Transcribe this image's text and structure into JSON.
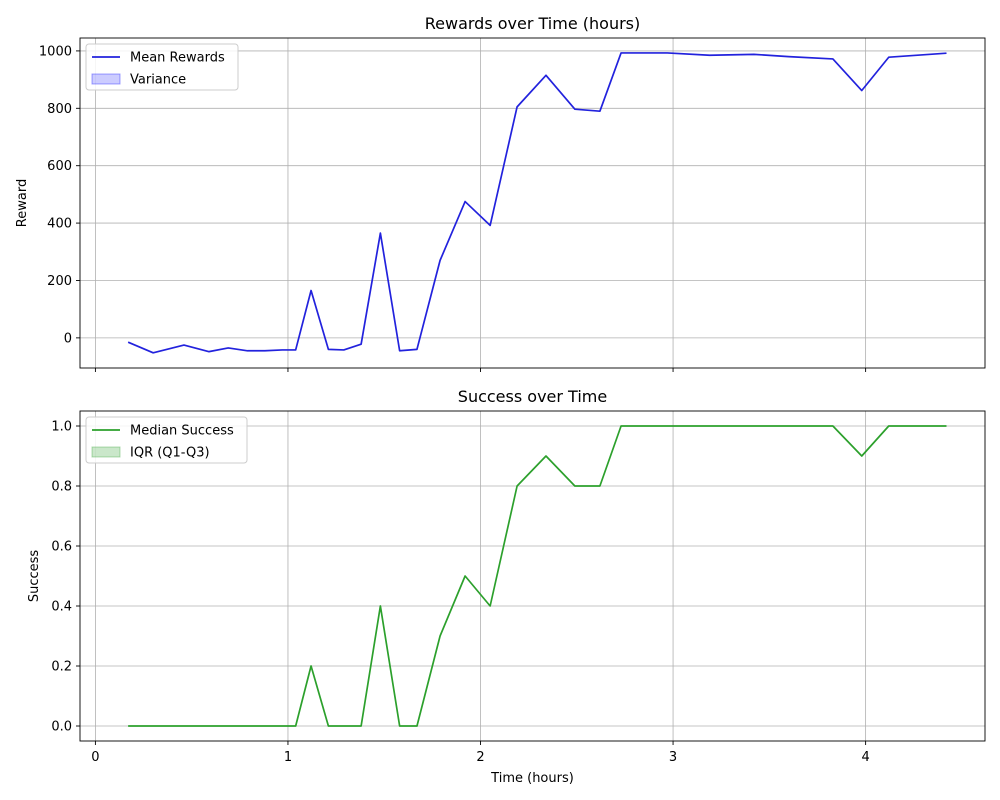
{
  "chart_data": [
    {
      "type": "line",
      "title": "Rewards over Time (hours)",
      "xlabel": "",
      "ylabel": "Reward",
      "xlim": [
        -0.08,
        4.62
      ],
      "ylim": [
        -105,
        1045
      ],
      "xticks": [
        0,
        1,
        2,
        3,
        4
      ],
      "xtick_labels_visible": false,
      "yticks": [
        0,
        200,
        400,
        600,
        800,
        1000
      ],
      "grid": true,
      "legend_position": "top-left",
      "series": [
        {
          "name": "Mean Rewards",
          "kind": "line",
          "color": "#2222dd",
          "x": [
            0.17,
            0.3,
            0.46,
            0.59,
            0.69,
            0.79,
            0.88,
            0.97,
            1.04,
            1.12,
            1.21,
            1.29,
            1.38,
            1.48,
            1.58,
            1.67,
            1.79,
            1.92,
            2.05,
            2.19,
            2.34,
            2.49,
            2.62,
            2.73,
            2.97,
            3.19,
            3.42,
            3.6,
            3.83,
            3.98,
            4.12,
            4.42
          ],
          "y": [
            -15,
            -52,
            -25,
            -48,
            -35,
            -45,
            -45,
            -42,
            -42,
            165,
            -40,
            -42,
            -22,
            365,
            -45,
            -40,
            270,
            475,
            392,
            805,
            915,
            797,
            790,
            993,
            993,
            985,
            988,
            980,
            972,
            862,
            978,
            992
          ]
        },
        {
          "name": "Variance",
          "kind": "band",
          "color": "#0000ff",
          "opacity": 0.2,
          "x": [],
          "lower": [],
          "upper": []
        }
      ]
    },
    {
      "type": "line",
      "title": "Success over Time",
      "xlabel": "Time (hours)",
      "ylabel": "Success",
      "xlim": [
        -0.08,
        4.62
      ],
      "ylim": [
        -0.05,
        1.05
      ],
      "xticks": [
        0,
        1,
        2,
        3,
        4
      ],
      "xtick_labels_visible": true,
      "yticks": [
        0.0,
        0.2,
        0.4,
        0.6,
        0.8,
        1.0
      ],
      "ytick_decimals": 1,
      "grid": true,
      "legend_position": "top-left",
      "series": [
        {
          "name": "Median Success",
          "kind": "line",
          "color": "#2ca02c",
          "x": [
            0.17,
            0.3,
            0.46,
            0.59,
            0.69,
            0.79,
            0.88,
            0.97,
            1.04,
            1.12,
            1.21,
            1.29,
            1.38,
            1.48,
            1.58,
            1.67,
            1.79,
            1.92,
            2.05,
            2.19,
            2.34,
            2.49,
            2.62,
            2.73,
            2.97,
            3.19,
            3.42,
            3.6,
            3.83,
            3.98,
            4.12,
            4.42
          ],
          "y": [
            0,
            0,
            0,
            0,
            0,
            0,
            0,
            0,
            0,
            0.2,
            0,
            0,
            0,
            0.4,
            0,
            0,
            0.3,
            0.5,
            0.4,
            0.8,
            0.9,
            0.8,
            0.8,
            1.0,
            1.0,
            1.0,
            1.0,
            1.0,
            1.0,
            0.9,
            1.0,
            1.0
          ]
        },
        {
          "name": "IQR (Q1-Q3)",
          "kind": "band",
          "color": "#2ca02c",
          "opacity": 0.25,
          "x": [],
          "lower": [],
          "upper": []
        }
      ]
    }
  ]
}
